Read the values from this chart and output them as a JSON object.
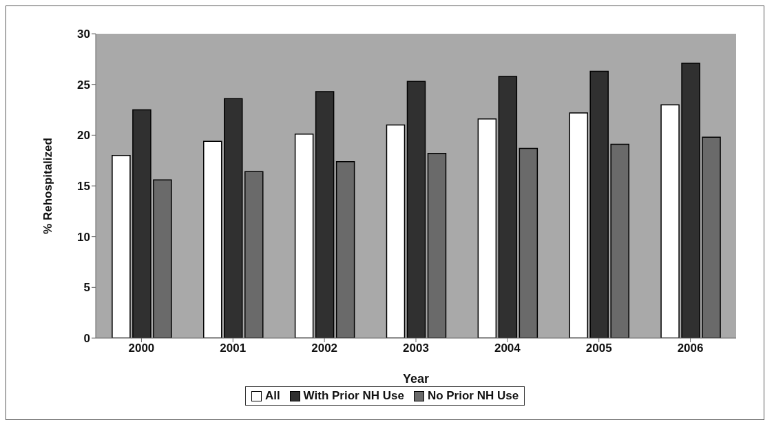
{
  "chart_data": {
    "type": "bar",
    "xlabel": "Year",
    "ylabel": "% Rehospitalized",
    "categories": [
      "2000",
      "2001",
      "2002",
      "2003",
      "2004",
      "2005",
      "2006"
    ],
    "series": [
      {
        "name": "All",
        "color": "#ffffff",
        "values": [
          18,
          19.4,
          20.1,
          21.0,
          21.6,
          22.2,
          23.0
        ]
      },
      {
        "name": "With Prior NH Use",
        "color": "#303030",
        "values": [
          22.5,
          23.6,
          24.3,
          25.3,
          25.8,
          26.3,
          27.1
        ]
      },
      {
        "name": "No Prior NH Use",
        "color": "#6a6a6a",
        "values": [
          15.6,
          16.4,
          17.4,
          18.2,
          18.7,
          19.1,
          19.8
        ]
      }
    ],
    "ylim": [
      0,
      30
    ],
    "yticks": [
      0,
      5,
      10,
      15,
      20,
      25,
      30
    ],
    "grid": false,
    "legend": "bottom"
  }
}
